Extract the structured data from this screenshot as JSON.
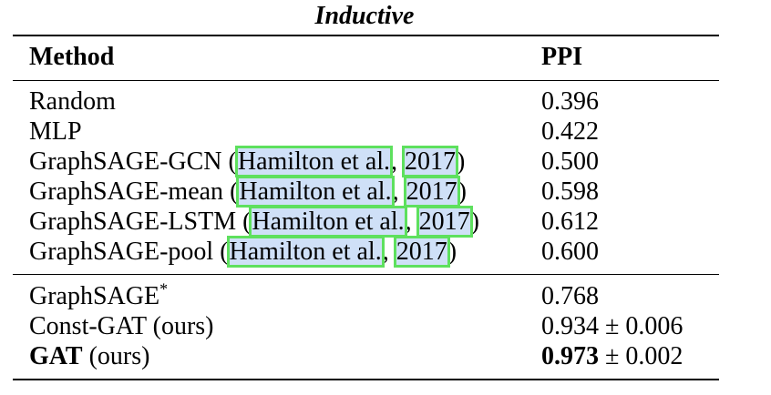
{
  "caption": "Inductive",
  "header": {
    "method": "Method",
    "ppi": "PPI"
  },
  "rows": [
    {
      "name": "Random",
      "value": "0.396"
    },
    {
      "name": "MLP",
      "value": "0.422"
    },
    {
      "name": "GraphSAGE-GCN",
      "cite_author": "Hamilton et al.",
      "cite_year": "2017",
      "value": "0.500"
    },
    {
      "name": "GraphSAGE-mean",
      "cite_author": "Hamilton et al.",
      "cite_year": "2017",
      "value": "0.598"
    },
    {
      "name": "GraphSAGE-LSTM",
      "cite_author": "Hamilton et al.",
      "cite_year": "2017",
      "value": "0.612"
    },
    {
      "name": "GraphSAGE-pool",
      "cite_author": "Hamilton et al.",
      "cite_year": "2017",
      "value": "0.600"
    }
  ],
  "rows2": [
    {
      "name": "GraphSAGE",
      "sup": "*",
      "value": "0.768"
    },
    {
      "name": "Const-GAT",
      "suffix": " (ours)",
      "value": "0.934",
      "pm": " ± 0.006"
    },
    {
      "name": "GAT",
      "suffix": " (ours)",
      "value": "0.973",
      "pm": " ± 0.002"
    }
  ],
  "colors": {
    "citation_highlight": "#cfe0f7",
    "citation_box": "#5ee05e"
  }
}
